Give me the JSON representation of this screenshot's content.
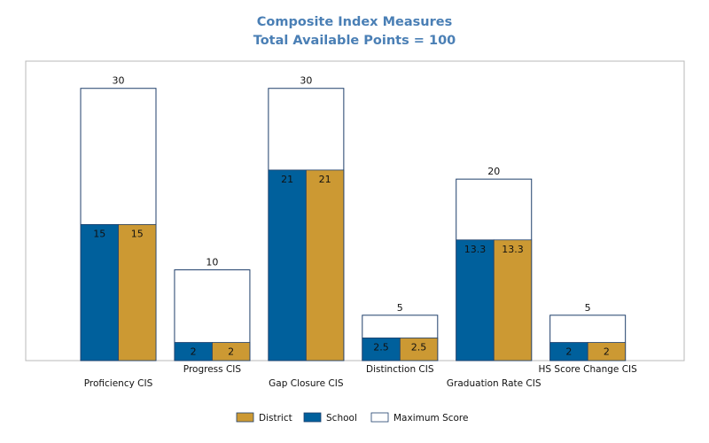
{
  "chart_data": {
    "type": "bar",
    "title": "Composite Index Measures",
    "subtitle": "Total Available Points = 100",
    "xlabel": "",
    "ylabel": "",
    "ylim": [
      0,
      33
    ],
    "grid": false,
    "legend_position": "bottom",
    "categories": [
      "Proficiency CIS",
      "Progress CIS",
      "Gap Closure CIS",
      "Distinction CIS",
      "Graduation Rate CIS",
      "HS Score Change CIS"
    ],
    "series": [
      {
        "name": "Maximum Score",
        "values": [
          30,
          10,
          30,
          5,
          20,
          5
        ],
        "color": "#ffffff",
        "labels": [
          "30",
          "10",
          "30",
          "5",
          "20",
          "5"
        ]
      },
      {
        "name": "School",
        "values": [
          15,
          2,
          21,
          2.5,
          13.3,
          2
        ],
        "color": "#00609c",
        "labels": [
          "15",
          "2",
          "21",
          "2.5",
          "13.3",
          "2"
        ]
      },
      {
        "name": "District",
        "values": [
          15,
          2,
          21,
          2.5,
          13.3,
          2
        ],
        "color": "#cc9933",
        "labels": [
          "15",
          "2",
          "21",
          "2.5",
          "13.3",
          "2"
        ]
      }
    ],
    "legend": [
      {
        "name": "District",
        "color": "#cc9933"
      },
      {
        "name": "School",
        "color": "#00609c"
      },
      {
        "name": "Maximum Score",
        "color": "#ffffff"
      }
    ],
    "colors": {
      "title": "#4a7fb5",
      "frame": "#b8b8b8",
      "outline": "#1f3f6b"
    }
  }
}
